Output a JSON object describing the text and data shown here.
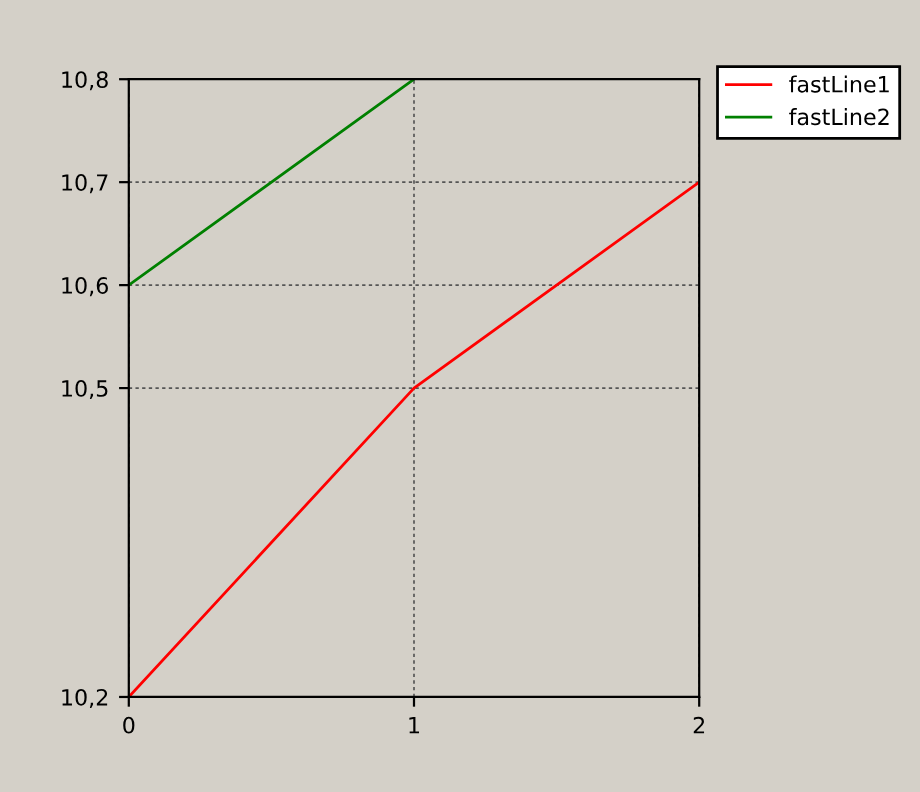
{
  "chart_data": {
    "type": "line",
    "x": [
      0,
      1,
      2
    ],
    "series": [
      {
        "name": "fastLine1",
        "color": "#ff0000",
        "values": [
          10.2,
          10.5,
          10.7
        ]
      },
      {
        "name": "fastLine2",
        "color": "#008000",
        "x": [
          0,
          1
        ],
        "values": [
          10.6,
          10.8
        ]
      }
    ],
    "xlim": [
      0,
      2
    ],
    "ylim": [
      10.2,
      10.8
    ],
    "xticks": [
      0,
      1,
      2
    ],
    "yticks": [
      {
        "value": 10.2,
        "label": "10,2"
      },
      {
        "value": 10.5,
        "label": "10,5"
      },
      {
        "value": 10.6,
        "label": "10,6"
      },
      {
        "value": 10.7,
        "label": "10,7"
      },
      {
        "value": 10.8,
        "label": "10,8"
      }
    ],
    "grid": true,
    "legend": "top right",
    "line_style": "solid",
    "marker": "none"
  }
}
